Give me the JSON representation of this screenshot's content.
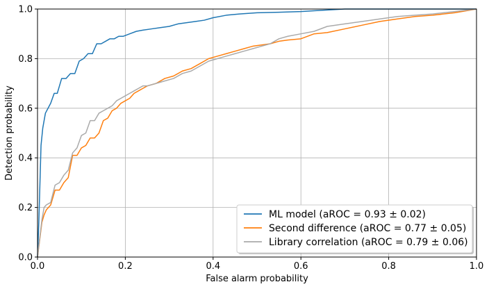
{
  "chart_data": {
    "type": "line",
    "xlabel": "False alarm probability",
    "ylabel": "Detection probability",
    "xlim": [
      0,
      1
    ],
    "ylim": [
      0,
      1
    ],
    "xticks": [
      "0.0",
      "0.2",
      "0.4",
      "0.6",
      "0.8",
      "1.0"
    ],
    "yticks": [
      "0.0",
      "0.2",
      "0.4",
      "0.6",
      "0.8",
      "1.0"
    ],
    "grid": true,
    "legend_position": "bottom-right",
    "series": [
      {
        "name": "ML model (aROC = 0.93 ± 0.02)",
        "color": "#1f77b4",
        "x": [
          0,
          0.003,
          0.008,
          0.012,
          0.018,
          0.03,
          0.038,
          0.045,
          0.055,
          0.065,
          0.075,
          0.085,
          0.095,
          0.105,
          0.115,
          0.125,
          0.135,
          0.145,
          0.155,
          0.165,
          0.175,
          0.185,
          0.195,
          0.21,
          0.225,
          0.24,
          0.26,
          0.28,
          0.3,
          0.32,
          0.34,
          0.36,
          0.38,
          0.4,
          0.43,
          0.46,
          0.5,
          0.55,
          0.6,
          0.65,
          0.7,
          0.8,
          0.9,
          1.0
        ],
        "y": [
          0,
          0.14,
          0.45,
          0.52,
          0.58,
          0.62,
          0.66,
          0.66,
          0.72,
          0.72,
          0.74,
          0.74,
          0.79,
          0.8,
          0.82,
          0.82,
          0.86,
          0.86,
          0.87,
          0.88,
          0.88,
          0.89,
          0.89,
          0.9,
          0.91,
          0.915,
          0.92,
          0.925,
          0.93,
          0.94,
          0.945,
          0.95,
          0.955,
          0.965,
          0.975,
          0.98,
          0.985,
          0.987,
          0.99,
          0.995,
          1.0,
          1.0,
          1.0,
          1.0
        ]
      },
      {
        "name": "Second difference (aROC = 0.77 ± 0.05)",
        "color": "#ff7f0e",
        "x": [
          0,
          0.01,
          0.015,
          0.02,
          0.03,
          0.04,
          0.05,
          0.06,
          0.07,
          0.08,
          0.09,
          0.1,
          0.11,
          0.12,
          0.13,
          0.14,
          0.15,
          0.16,
          0.17,
          0.18,
          0.19,
          0.2,
          0.21,
          0.22,
          0.23,
          0.24,
          0.25,
          0.27,
          0.29,
          0.31,
          0.33,
          0.35,
          0.37,
          0.39,
          0.41,
          0.43,
          0.45,
          0.47,
          0.49,
          0.51,
          0.53,
          0.55,
          0.57,
          0.6,
          0.63,
          0.66,
          0.7,
          0.74,
          0.78,
          0.82,
          0.86,
          0.9,
          0.95,
          1.0
        ],
        "y": [
          0,
          0.14,
          0.17,
          0.19,
          0.21,
          0.27,
          0.27,
          0.3,
          0.32,
          0.41,
          0.41,
          0.44,
          0.45,
          0.48,
          0.48,
          0.5,
          0.55,
          0.56,
          0.59,
          0.6,
          0.62,
          0.63,
          0.64,
          0.66,
          0.67,
          0.68,
          0.69,
          0.7,
          0.72,
          0.73,
          0.75,
          0.76,
          0.78,
          0.8,
          0.81,
          0.82,
          0.83,
          0.84,
          0.85,
          0.855,
          0.86,
          0.87,
          0.875,
          0.88,
          0.9,
          0.905,
          0.92,
          0.935,
          0.95,
          0.96,
          0.97,
          0.975,
          0.985,
          1.0
        ]
      },
      {
        "name": "Library correlation (aROC = 0.79 ± 0.06)",
        "color": "#aaaaaa",
        "x": [
          0,
          0.01,
          0.015,
          0.02,
          0.03,
          0.04,
          0.05,
          0.06,
          0.07,
          0.08,
          0.09,
          0.1,
          0.11,
          0.12,
          0.13,
          0.14,
          0.15,
          0.16,
          0.17,
          0.18,
          0.19,
          0.2,
          0.21,
          0.22,
          0.23,
          0.24,
          0.25,
          0.27,
          0.29,
          0.31,
          0.33,
          0.35,
          0.37,
          0.39,
          0.41,
          0.43,
          0.45,
          0.47,
          0.49,
          0.51,
          0.53,
          0.55,
          0.57,
          0.6,
          0.63,
          0.66,
          0.7,
          0.74,
          0.78,
          0.82,
          0.86,
          0.9,
          0.95,
          1.0
        ],
        "y": [
          0,
          0.15,
          0.2,
          0.21,
          0.22,
          0.29,
          0.3,
          0.33,
          0.35,
          0.42,
          0.44,
          0.49,
          0.5,
          0.55,
          0.55,
          0.58,
          0.59,
          0.6,
          0.61,
          0.63,
          0.64,
          0.65,
          0.66,
          0.67,
          0.68,
          0.69,
          0.69,
          0.7,
          0.71,
          0.72,
          0.74,
          0.75,
          0.77,
          0.79,
          0.8,
          0.81,
          0.82,
          0.83,
          0.84,
          0.85,
          0.86,
          0.88,
          0.89,
          0.9,
          0.91,
          0.93,
          0.94,
          0.95,
          0.96,
          0.97,
          0.975,
          0.98,
          0.99,
          1.0
        ]
      }
    ]
  }
}
